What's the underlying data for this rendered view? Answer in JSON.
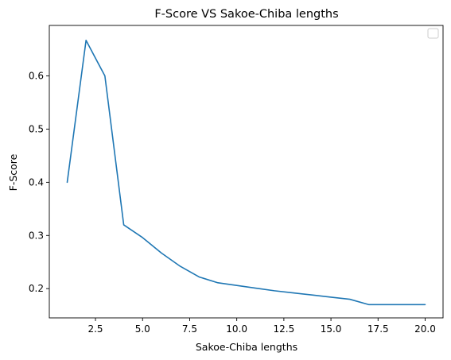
{
  "chart_data": {
    "type": "line",
    "title": "F-Score VS Sakoe-Chiba lengths",
    "xlabel": "Sakoe-Chiba lengths",
    "ylabel": "F-Score",
    "xlim": [
      0.05,
      20.95
    ],
    "ylim": [
      0.145,
      0.695
    ],
    "xticks": [
      2.5,
      5.0,
      7.5,
      10.0,
      12.5,
      15.0,
      17.5,
      20.0
    ],
    "xtick_labels": [
      "2.5",
      "5.0",
      "7.5",
      "10.0",
      "12.5",
      "15.0",
      "17.5",
      "20.0"
    ],
    "yticks": [
      0.2,
      0.3,
      0.4,
      0.5,
      0.6
    ],
    "ytick_labels": [
      "0.2",
      "0.3",
      "0.4",
      "0.5",
      "0.6"
    ],
    "grid": false,
    "legend": "upper-right, empty",
    "series": [
      {
        "color": "#1f77b4",
        "x": [
          1,
          2,
          3,
          4,
          5,
          6,
          7,
          8,
          9,
          10,
          11,
          12,
          13,
          14,
          15,
          16,
          17,
          18,
          19,
          20
        ],
        "y": [
          0.4,
          0.667,
          0.6,
          0.32,
          0.296,
          0.267,
          0.242,
          0.222,
          0.211,
          0.206,
          0.201,
          0.196,
          0.192,
          0.188,
          0.184,
          0.18,
          0.17,
          0.17,
          0.17,
          0.17
        ]
      }
    ]
  }
}
